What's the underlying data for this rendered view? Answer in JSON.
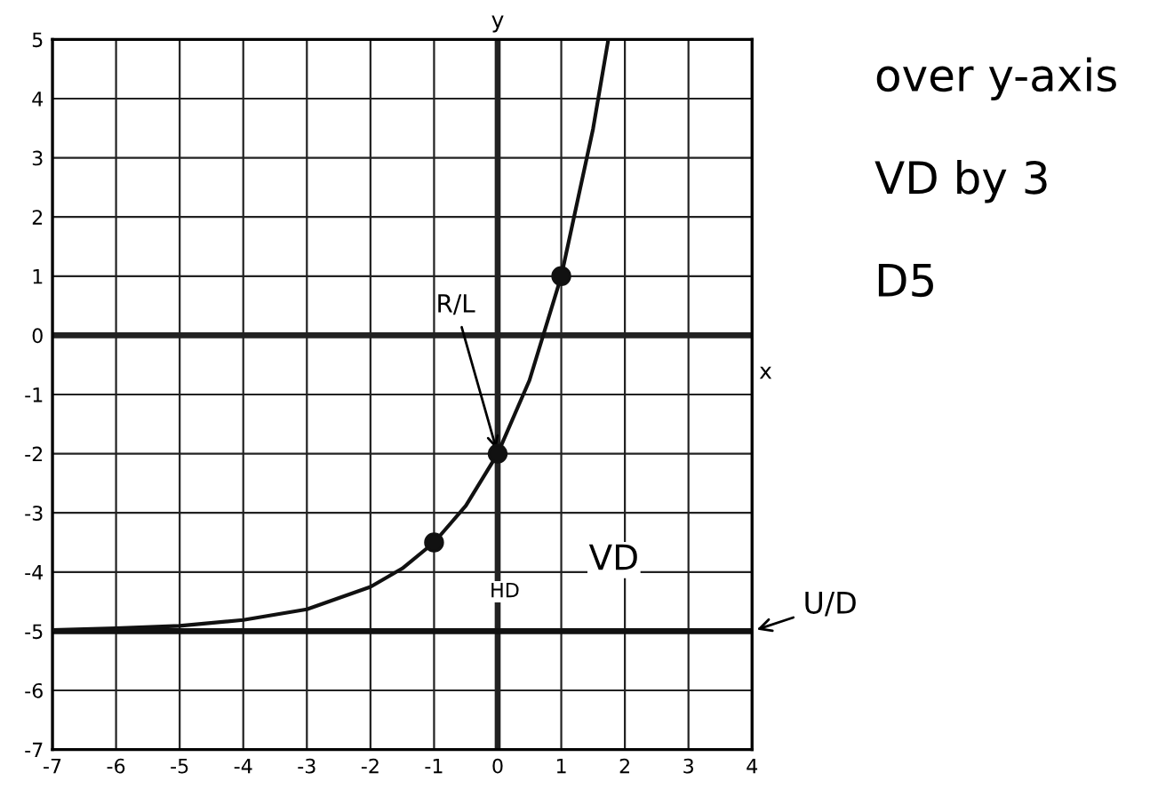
{
  "chart_data": {
    "type": "line",
    "xlabel": "x",
    "ylabel": "y",
    "series": [
      {
        "color": "#111111",
        "marker": "none",
        "x": [
          -7,
          -6,
          -5,
          -4,
          -3,
          -2,
          -1.5,
          -1,
          -0.5,
          0,
          0.5,
          1,
          1.5,
          1.74
        ],
        "values": [
          -4.98,
          -4.95,
          -4.91,
          -4.81,
          -4.63,
          -4.25,
          -3.94,
          -3.5,
          -2.88,
          -2,
          -0.76,
          1,
          3.49,
          5
        ]
      },
      {
        "type": "scatter",
        "color": "#111111",
        "marker": "circle",
        "x": [
          -1,
          0,
          1
        ],
        "values": [
          -3.5,
          -2,
          1
        ]
      }
    ],
    "xlim": [
      -7,
      4
    ],
    "ylim": [
      -7,
      5
    ],
    "xticks": [
      -7,
      -6,
      -5,
      -4,
      -3,
      -2,
      -1,
      0,
      1,
      2,
      3,
      4
    ],
    "yticks": [
      -7,
      -6,
      -5,
      -4,
      -3,
      -2,
      -1,
      0,
      1,
      2,
      3,
      4,
      5
    ],
    "grid": true,
    "ref_lines": [
      {
        "axis": "y",
        "value": -5,
        "label": "U/D",
        "color": "#111111"
      }
    ],
    "annotations": [
      "over y-axis",
      "VD by 3",
      "D5",
      {
        "text": "R/L",
        "x": 0,
        "y": -2
      },
      "VD",
      "HD"
    ]
  }
}
